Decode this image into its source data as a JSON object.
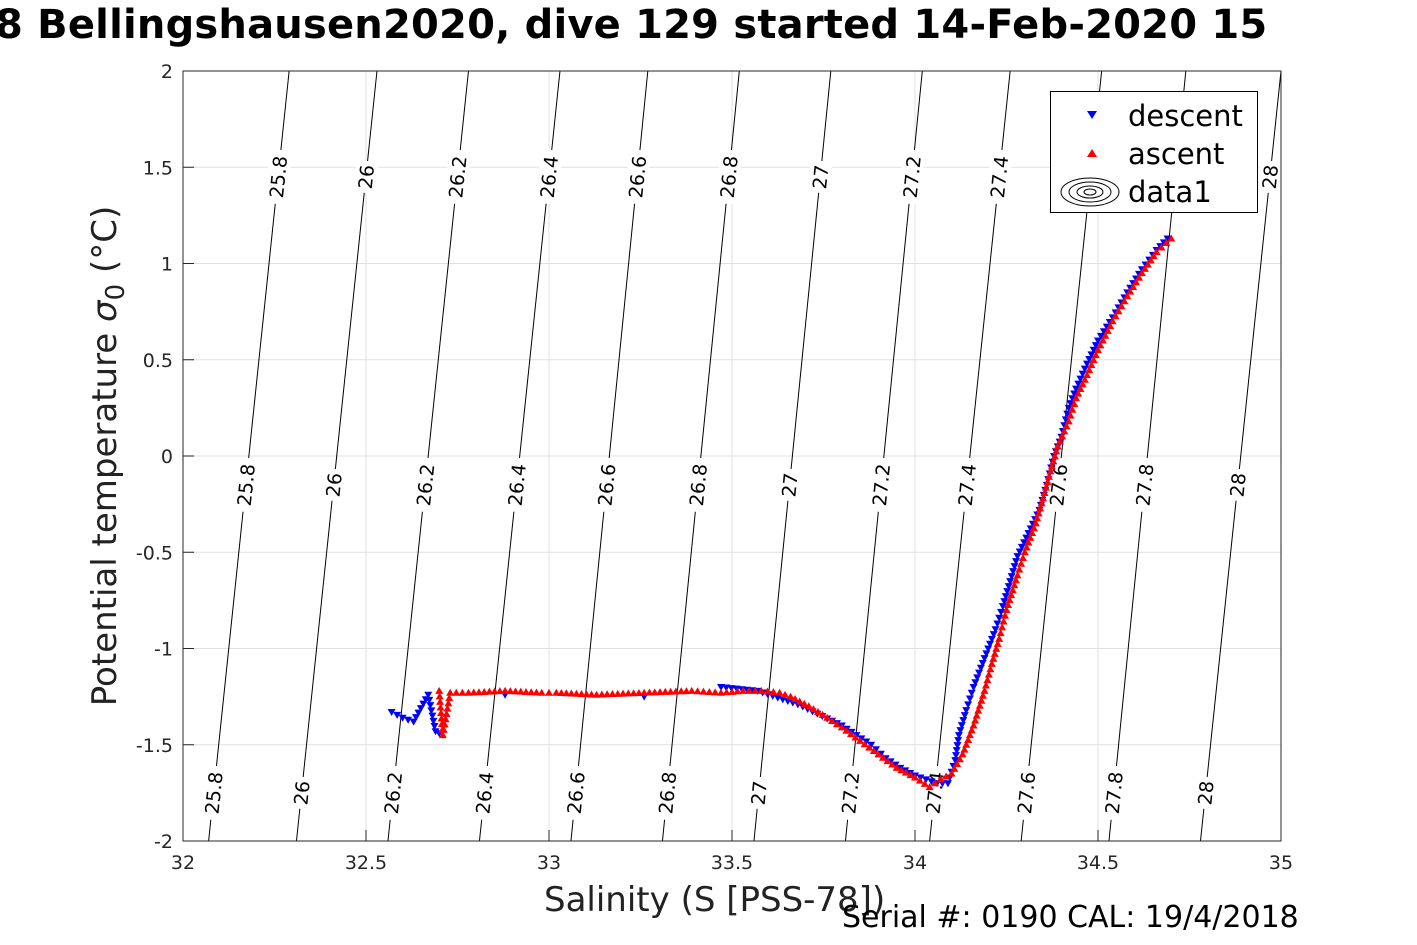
{
  "chart_data": {
    "type": "scatter",
    "title": "8 Bellingshausen2020, dive 129 started 14-Feb-2020 15",
    "xlabel": "Salinity (S [PSS-78])",
    "ylabel": "Potential temperature",
    "ylabel_symbol": "σ",
    "ylabel_subscript": "0",
    "ylabel_unit": "(°C)",
    "footer": "Serial #: 0190  CAL: 19/4/2018",
    "xlim": [
      32,
      35
    ],
    "ylim": [
      -2,
      2
    ],
    "xticks": [
      32,
      32.5,
      33,
      33.5,
      34,
      34.5,
      35
    ],
    "yticks": [
      -2,
      -1.5,
      -1,
      -0.5,
      0,
      0.5,
      1,
      1.5,
      2
    ],
    "xtick_labels": [
      "32",
      "32.5",
      "33",
      "33.5",
      "34",
      "34.5",
      "35"
    ],
    "ytick_labels": [
      "-2",
      "-1.5",
      "-1",
      "-0.5",
      "0",
      "0.5",
      "1",
      "1.5",
      "2"
    ],
    "grid": true,
    "legend": {
      "position": "top-right",
      "entries": [
        {
          "label": "descent",
          "marker": "triangle-down",
          "color": "#0000ff"
        },
        {
          "label": "ascent",
          "marker": "triangle-up",
          "color": "#ff0000"
        },
        {
          "label": "data1",
          "marker": "contour",
          "color": "#000000"
        }
      ]
    },
    "density_contours": {
      "levels": [
        25.8,
        26,
        26.2,
        26.4,
        26.6,
        26.8,
        27,
        27.2,
        27.4,
        27.6,
        27.8,
        28
      ],
      "labels": [
        "25.8",
        "26",
        "26.2",
        "26.4",
        "26.6",
        "26.8",
        "27",
        "27.2",
        "27.4",
        "27.6",
        "27.8",
        "28"
      ],
      "salinity_at_min_temp": [
        32.07,
        32.31,
        32.56,
        32.81,
        33.06,
        33.31,
        33.56,
        33.81,
        34.04,
        34.29,
        34.53,
        34.78
      ],
      "salinity_at_max_temp": [
        32.29,
        32.53,
        32.78,
        33.03,
        33.27,
        33.52,
        33.77,
        34.02,
        34.26,
        34.51,
        34.74,
        35.0
      ],
      "label_temps": [
        -1.75,
        -0.15,
        1.45
      ]
    },
    "series": [
      {
        "name": "descent",
        "color": "#0000ff",
        "marker": "triangle-down",
        "points": [
          [
            32.57,
            -1.33
          ],
          [
            32.6,
            -1.36
          ],
          [
            32.63,
            -1.38
          ],
          [
            32.67,
            -1.24
          ],
          [
            32.69,
            -1.43
          ],
          [
            32.7,
            -1.44
          ],
          [
            32.88,
            -1.24
          ],
          [
            33.26,
            -1.25
          ],
          [
            33.47,
            -1.2
          ],
          [
            33.57,
            -1.22
          ],
          [
            33.68,
            -1.29
          ],
          [
            33.8,
            -1.4
          ],
          [
            33.84,
            -1.45
          ],
          [
            33.88,
            -1.5
          ],
          [
            33.92,
            -1.57
          ],
          [
            33.96,
            -1.62
          ],
          [
            34.0,
            -1.66
          ],
          [
            34.03,
            -1.68
          ],
          [
            34.06,
            -1.7
          ],
          [
            34.09,
            -1.7
          ],
          [
            34.11,
            -1.58
          ],
          [
            34.12,
            -1.45
          ],
          [
            34.14,
            -1.32
          ],
          [
            34.16,
            -1.2
          ],
          [
            34.19,
            -1.05
          ],
          [
            34.22,
            -0.9
          ],
          [
            34.24,
            -0.78
          ],
          [
            34.26,
            -0.65
          ],
          [
            34.28,
            -0.52
          ],
          [
            34.31,
            -0.4
          ],
          [
            34.34,
            -0.28
          ],
          [
            34.36,
            -0.15
          ],
          [
            34.38,
            0.0
          ],
          [
            34.4,
            0.1
          ],
          [
            34.42,
            0.25
          ],
          [
            34.44,
            0.35
          ],
          [
            34.47,
            0.48
          ],
          [
            34.5,
            0.6
          ],
          [
            34.54,
            0.72
          ],
          [
            34.58,
            0.85
          ],
          [
            34.62,
            0.97
          ],
          [
            34.66,
            1.07
          ],
          [
            34.69,
            1.13
          ]
        ]
      },
      {
        "name": "ascent",
        "color": "#ff0000",
        "marker": "triangle-up",
        "points": [
          [
            32.7,
            -1.22
          ],
          [
            32.71,
            -1.45
          ],
          [
            32.73,
            -1.23
          ],
          [
            32.78,
            -1.23
          ],
          [
            32.88,
            -1.22
          ],
          [
            32.98,
            -1.23
          ],
          [
            33.02,
            -1.23
          ],
          [
            33.13,
            -1.24
          ],
          [
            33.26,
            -1.23
          ],
          [
            33.39,
            -1.22
          ],
          [
            33.47,
            -1.23
          ],
          [
            33.53,
            -1.22
          ],
          [
            33.58,
            -1.22
          ],
          [
            33.63,
            -1.23
          ],
          [
            33.66,
            -1.25
          ],
          [
            33.71,
            -1.3
          ],
          [
            33.76,
            -1.36
          ],
          [
            33.8,
            -1.41
          ],
          [
            33.85,
            -1.48
          ],
          [
            33.9,
            -1.55
          ],
          [
            33.95,
            -1.62
          ],
          [
            34.0,
            -1.67
          ],
          [
            34.04,
            -1.72
          ],
          [
            34.07,
            -1.68
          ],
          [
            34.1,
            -1.65
          ],
          [
            34.13,
            -1.55
          ],
          [
            34.16,
            -1.4
          ],
          [
            34.19,
            -1.22
          ],
          [
            34.21,
            -1.08
          ],
          [
            34.23,
            -0.95
          ],
          [
            34.25,
            -0.8
          ],
          [
            34.28,
            -0.62
          ],
          [
            34.3,
            -0.5
          ],
          [
            34.33,
            -0.35
          ],
          [
            34.35,
            -0.22
          ],
          [
            34.37,
            -0.08
          ],
          [
            34.39,
            0.05
          ],
          [
            34.42,
            0.18
          ],
          [
            34.44,
            0.3
          ],
          [
            34.47,
            0.42
          ],
          [
            34.5,
            0.55
          ],
          [
            34.54,
            0.7
          ],
          [
            34.58,
            0.83
          ],
          [
            34.62,
            0.95
          ],
          [
            34.66,
            1.06
          ],
          [
            34.7,
            1.13
          ]
        ]
      }
    ]
  }
}
